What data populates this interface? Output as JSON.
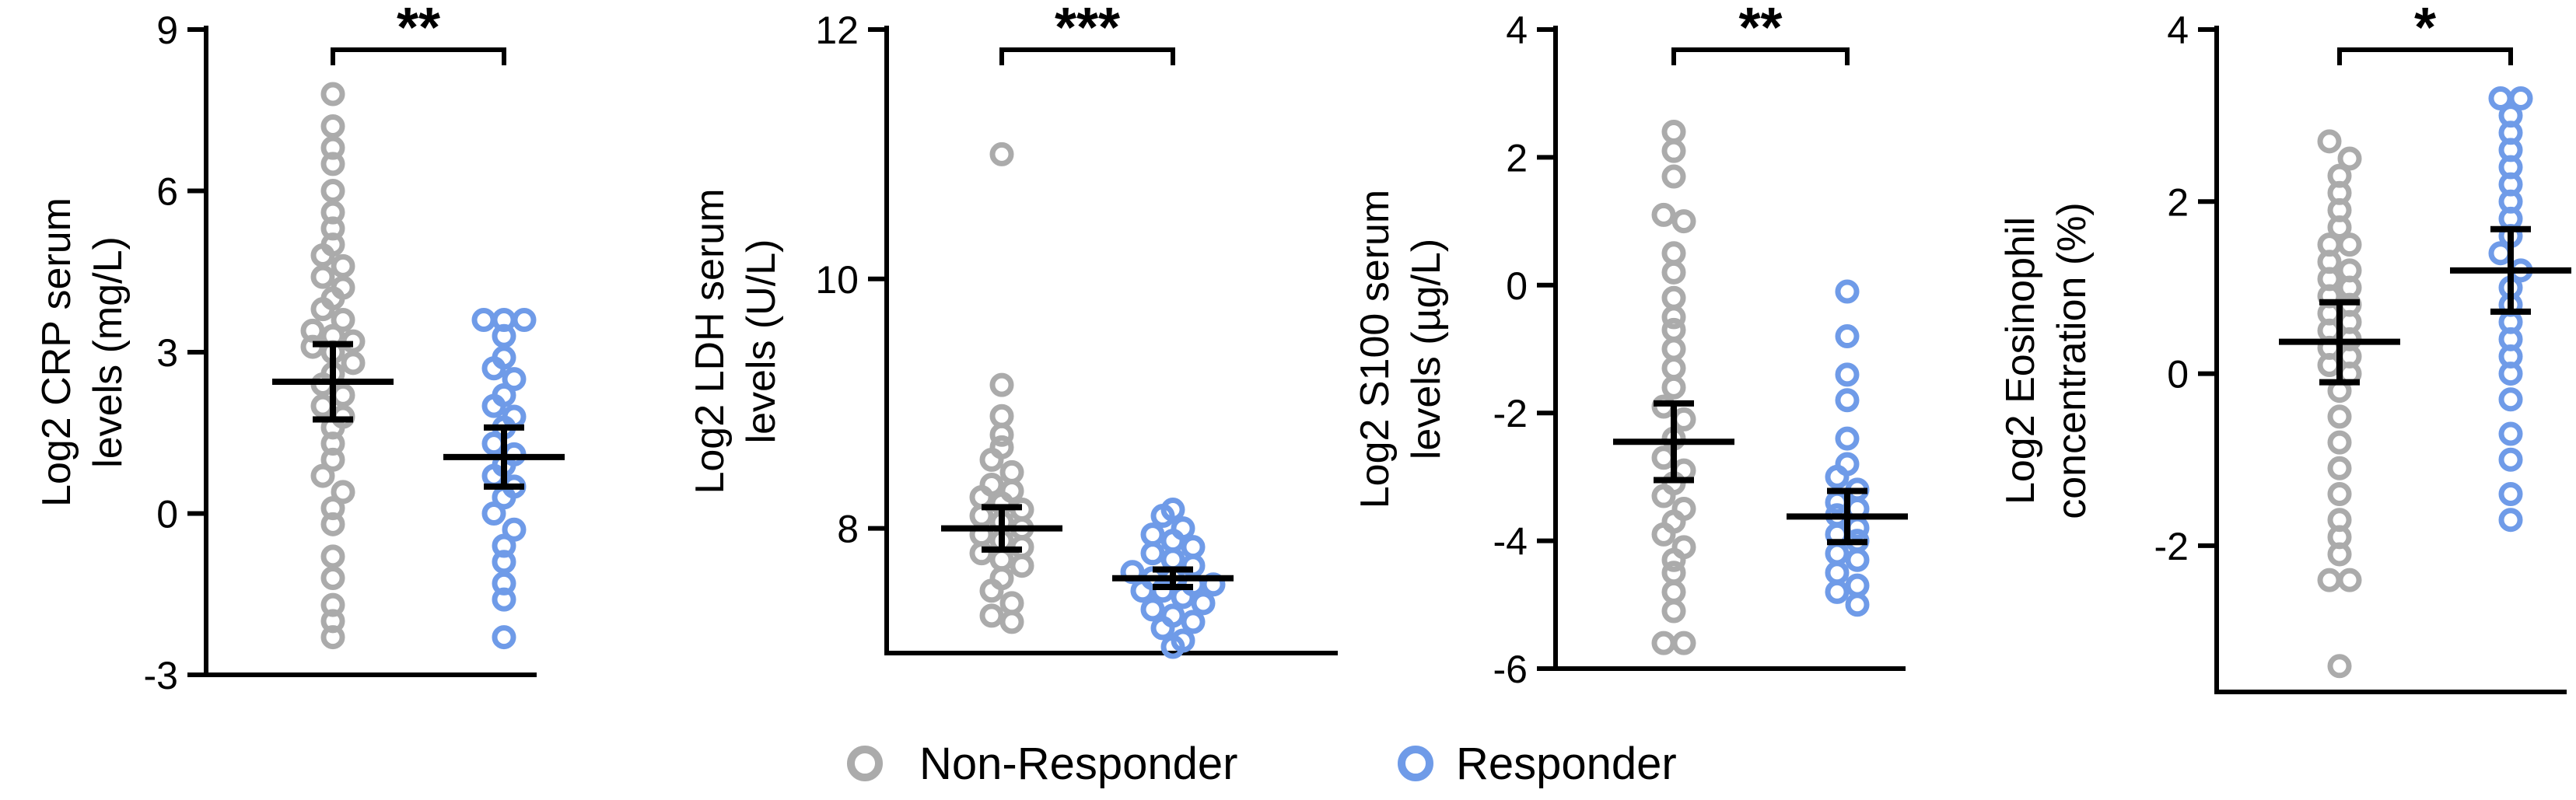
{
  "colors": {
    "non_responder": "#ababab",
    "responder": "#6f9be8",
    "axis": "#000000"
  },
  "legend": {
    "position": "bottom-center",
    "items": [
      {
        "label": "Non-Responder",
        "color": "#ababab"
      },
      {
        "label": "Responder",
        "color": "#6f9be8"
      }
    ]
  },
  "chart_data": [
    {
      "type": "scatter",
      "ylabel_lines": [
        "Log2 CRP serum",
        "levels  (mg/L)"
      ],
      "ylim": [
        -3,
        9
      ],
      "yticks": [
        -3,
        0,
        3,
        6,
        9
      ],
      "yticklabels": [
        "-3",
        "0",
        "3",
        "6",
        "9"
      ],
      "grid": false,
      "significance": "**",
      "groups": [
        {
          "name": "Non-Responder",
          "mean": 2.45,
          "err_low": 1.75,
          "err_high": 3.15,
          "values": [
            7.8,
            7.2,
            6.8,
            6.5,
            6.0,
            5.6,
            5.3,
            5.0,
            4.8,
            4.6,
            4.4,
            4.2,
            4.0,
            3.8,
            3.6,
            3.4,
            3.3,
            3.2,
            3.1,
            3.0,
            2.8,
            2.6,
            2.4,
            2.2,
            2.0,
            1.8,
            1.6,
            1.3,
            1.0,
            0.7,
            0.4,
            0.1,
            -0.2,
            -0.8,
            -1.2,
            -1.7,
            -2.0,
            -2.3
          ]
        },
        {
          "name": "Responder",
          "mean": 1.05,
          "err_low": 0.5,
          "err_high": 1.6,
          "values": [
            3.6,
            3.6,
            3.6,
            3.3,
            2.9,
            2.7,
            2.5,
            2.2,
            2.0,
            1.8,
            1.6,
            1.3,
            1.1,
            0.9,
            0.7,
            0.5,
            0.3,
            0.0,
            -0.3,
            -0.6,
            -0.9,
            -1.3,
            -1.6,
            -2.3
          ]
        }
      ]
    },
    {
      "type": "scatter",
      "ylabel_lines": [
        "Log2 LDH serum",
        "levels (U/L)"
      ],
      "ylim": [
        7,
        12
      ],
      "yticks": [
        8,
        10,
        12
      ],
      "yticklabels": [
        "8",
        "10",
        "12"
      ],
      "grid": false,
      "significance": "***",
      "groups": [
        {
          "name": "Non-Responder",
          "mean": 8.0,
          "err_low": 7.83,
          "err_high": 8.17,
          "values": [
            11.0,
            9.15,
            8.9,
            8.75,
            8.65,
            8.55,
            8.45,
            8.35,
            8.3,
            8.25,
            8.2,
            8.15,
            8.1,
            8.05,
            8.0,
            7.95,
            7.9,
            7.85,
            7.8,
            7.75,
            7.7,
            7.6,
            7.5,
            7.4,
            7.3,
            7.25
          ]
        },
        {
          "name": "Responder",
          "mean": 7.6,
          "err_low": 7.53,
          "err_high": 7.67,
          "values": [
            8.15,
            8.1,
            8.0,
            7.95,
            7.9,
            7.85,
            7.8,
            7.75,
            7.7,
            7.65,
            7.6,
            7.6,
            7.55,
            7.55,
            7.5,
            7.5,
            7.45,
            7.4,
            7.35,
            7.3,
            7.25,
            7.2,
            7.1,
            7.05
          ]
        }
      ]
    },
    {
      "type": "scatter",
      "ylabel_lines": [
        "Log2 S100 serum",
        "levels (µg/L)"
      ],
      "ylim": [
        -6,
        4
      ],
      "yticks": [
        -6,
        -4,
        -2,
        0,
        2,
        4
      ],
      "yticklabels": [
        "-6",
        "-4",
        "-2",
        "0",
        "2",
        "4"
      ],
      "grid": false,
      "significance": "**",
      "groups": [
        {
          "name": "Non-Responder",
          "mean": -2.45,
          "err_low": -3.05,
          "err_high": -1.85,
          "values": [
            2.4,
            2.1,
            1.7,
            1.1,
            1.0,
            0.5,
            0.2,
            -0.2,
            -0.5,
            -0.7,
            -1.0,
            -1.3,
            -1.6,
            -1.9,
            -2.1,
            -2.4,
            -2.7,
            -2.9,
            -3.1,
            -3.3,
            -3.5,
            -3.7,
            -3.9,
            -4.1,
            -4.3,
            -4.5,
            -4.8,
            -5.1,
            -5.6,
            -5.6
          ]
        },
        {
          "name": "Responder",
          "mean": -3.62,
          "err_low": -4.02,
          "err_high": -3.22,
          "values": [
            -0.1,
            -0.8,
            -1.4,
            -1.8,
            -2.4,
            -2.8,
            -3.0,
            -3.2,
            -3.4,
            -3.5,
            -3.6,
            -3.8,
            -3.9,
            -4.0,
            -4.2,
            -4.3,
            -4.5,
            -4.7,
            -4.8,
            -5.0
          ]
        }
      ]
    },
    {
      "type": "scatter",
      "ylabel_lines": [
        "Log2 Eosinophil",
        "concentration (%)"
      ],
      "ylim": [
        -3.7,
        4
      ],
      "yticks": [
        -2,
        0,
        2,
        4
      ],
      "yticklabels": [
        "-2",
        "0",
        "2",
        "4"
      ],
      "grid": false,
      "significance": "*",
      "groups": [
        {
          "name": "Non-Responder",
          "mean": 0.37,
          "err_low": -0.1,
          "err_high": 0.83,
          "values": [
            2.7,
            2.5,
            2.3,
            2.1,
            1.9,
            1.7,
            1.5,
            1.5,
            1.3,
            1.2,
            1.1,
            1.0,
            0.9,
            0.8,
            0.7,
            0.6,
            0.5,
            0.4,
            0.3,
            0.2,
            0.1,
            0.0,
            -0.2,
            -0.5,
            -0.8,
            -1.1,
            -1.4,
            -1.7,
            -1.9,
            -2.1,
            -2.4,
            -2.4,
            -3.4
          ]
        },
        {
          "name": "Responder",
          "mean": 1.2,
          "err_low": 0.72,
          "err_high": 1.68,
          "values": [
            3.2,
            3.2,
            3.0,
            2.8,
            2.6,
            2.4,
            2.2,
            2.0,
            1.8,
            1.6,
            1.4,
            1.2,
            1.0,
            0.8,
            0.6,
            0.4,
            0.2,
            0.0,
            -0.3,
            -0.7,
            -1.0,
            -1.4,
            -1.7
          ]
        }
      ]
    }
  ]
}
